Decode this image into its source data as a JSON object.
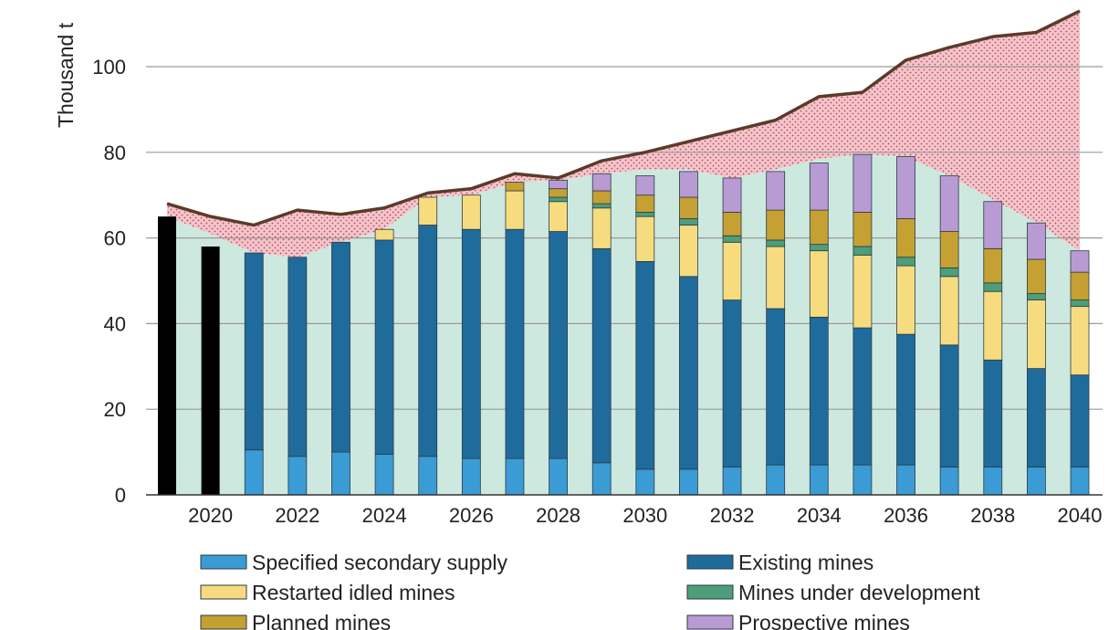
{
  "chart_data": {
    "type": "bar",
    "ylabel": "Thousand t",
    "ylim": [
      0,
      115
    ],
    "yticks": [
      0,
      20,
      40,
      60,
      80,
      100
    ],
    "grid": true,
    "years": [
      2019,
      2020,
      2021,
      2022,
      2023,
      2024,
      2025,
      2026,
      2027,
      2028,
      2029,
      2030,
      2031,
      2032,
      2033,
      2034,
      2035,
      2036,
      2037,
      2038,
      2039,
      2040
    ],
    "xtick_labels": [
      "2020",
      "2022",
      "2024",
      "2026",
      "2028",
      "2030",
      "2032",
      "2034",
      "2036",
      "2038",
      "2040"
    ],
    "historical_values": [
      65,
      58
    ],
    "series": [
      {
        "name": "Specified secondary supply",
        "color": "#3a9bd5",
        "values": [
          null,
          null,
          10.5,
          9,
          10,
          9.5,
          9,
          8.5,
          8.5,
          8.5,
          7.5,
          6,
          6,
          6.5,
          7,
          7,
          7,
          7,
          6.5,
          6.5,
          6.5,
          6.5
        ]
      },
      {
        "name": "Existing mines",
        "color": "#1f6b9c",
        "values": [
          null,
          null,
          46,
          46.5,
          49,
          50,
          54,
          53.5,
          53.5,
          53,
          50,
          48.5,
          45,
          39,
          36.5,
          34.5,
          32,
          30.5,
          28.5,
          25,
          23,
          21.5
        ]
      },
      {
        "name": "Restarted idled mines",
        "color": "#f6dc7f",
        "values": [
          null,
          null,
          0,
          0,
          0,
          2.5,
          6.5,
          8,
          9,
          7,
          9.5,
          10.5,
          12,
          13.5,
          14.5,
          15.5,
          17,
          16,
          16,
          16,
          16,
          16
        ]
      },
      {
        "name": "Mines under development",
        "color": "#4d9e7a",
        "values": [
          null,
          null,
          0,
          0,
          0,
          0,
          0,
          0,
          0,
          1,
          1,
          1,
          1.5,
          1.5,
          1.5,
          1.5,
          2,
          2,
          2,
          2,
          1.5,
          1.5
        ]
      },
      {
        "name": "Planned mines",
        "color": "#c5a032",
        "values": [
          null,
          null,
          0,
          0,
          0,
          0,
          0,
          0,
          2,
          2,
          3,
          4,
          5,
          5.5,
          7,
          8,
          8,
          9,
          8.5,
          8,
          8,
          6.5
        ]
      },
      {
        "name": "Prospective mines",
        "color": "#b99bd4",
        "values": [
          null,
          null,
          0,
          0,
          0,
          0,
          0,
          0,
          0,
          2,
          4,
          4.5,
          6,
          8,
          9,
          11,
          13.5,
          14.5,
          13,
          11,
          8.5,
          5
        ]
      }
    ],
    "total_requirements": [
      68,
      65,
      63,
      66.5,
      65.5,
      67,
      70.5,
      71.5,
      75,
      74,
      78,
      80,
      82.5,
      85,
      87.5,
      93,
      94,
      101.5,
      104.5,
      107,
      108,
      113
    ],
    "supply_envelope": [
      65,
      61,
      56.5,
      55.5,
      59,
      62,
      69.5,
      70,
      73,
      73.5,
      75,
      76,
      76,
      74,
      76,
      78.5,
      79.5,
      79,
      74.5,
      69,
      63.5,
      57
    ],
    "colors": {
      "historical": "#000000",
      "envelope_fill": "#cde9df",
      "gap_fill": "#f3c6cc",
      "gap_dots": "#c0465a",
      "requirements_line": "#5a3b2a"
    }
  }
}
